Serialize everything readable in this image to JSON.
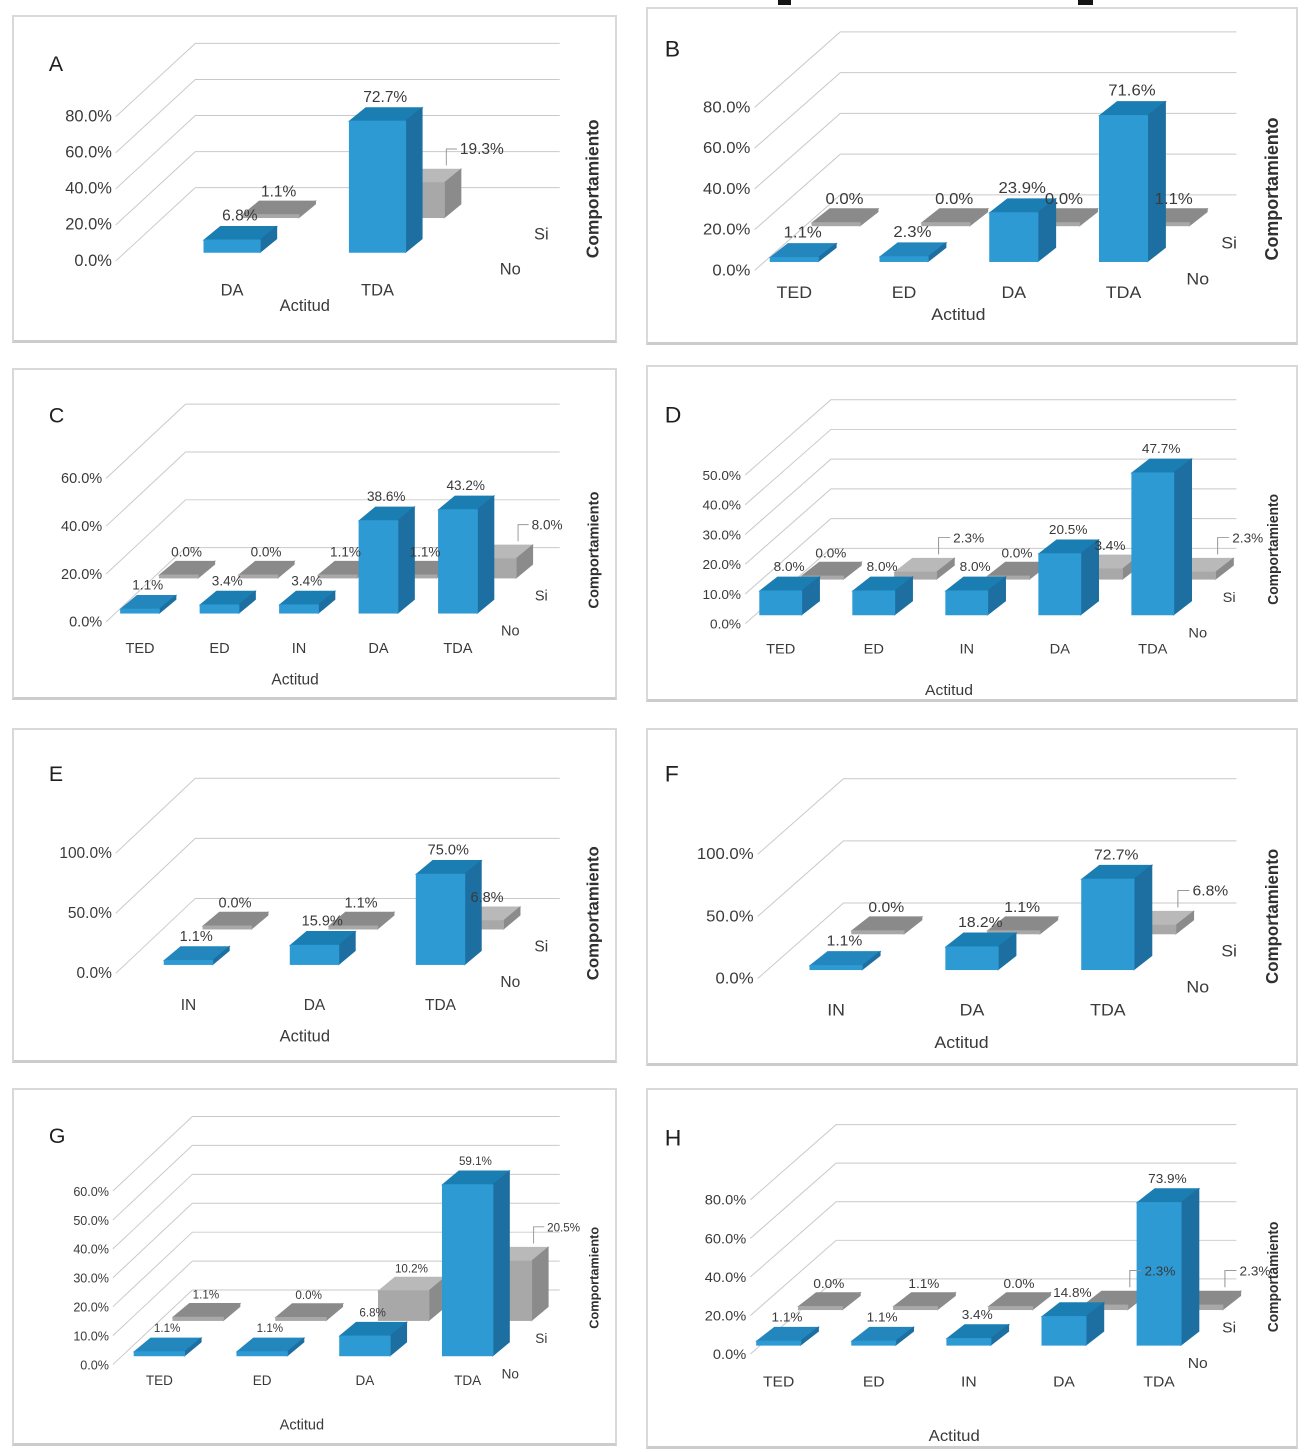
{
  "page": {
    "background": "#FFFFFF"
  },
  "colors": {
    "bar_blue_front": "#2E9AD4",
    "bar_blue_top": "#1B7EB2",
    "bar_blue_top_flat": "#2387BE",
    "bar_blue_side": "#1C6FA0",
    "bar_gray_front": "#A8A8A8",
    "bar_gray_top": "#B9B9B9",
    "bar_gray_top_flat": "#8A8A8A",
    "bar_gray_side": "#8B8B8B",
    "gridline": "#C9C9C9",
    "leader_line": "#999999",
    "text": "#3A3A3A",
    "panel_letter": "#1F1F1F",
    "panel_border": "#D9D9D9"
  },
  "chart_data": [
    {
      "panel_label": "A",
      "type": "bar",
      "projection": "3d",
      "x_axis_title": "Actitud",
      "depth_axis_title": "Comportamiento",
      "depth_labels": [
        "Si",
        "No"
      ],
      "categories": [
        "DA",
        "TDA"
      ],
      "y_ticks": [
        "0.0%",
        "20.0%",
        "40.0%",
        "60.0%",
        "80.0%"
      ],
      "ylim": [
        0,
        80
      ],
      "series": [
        {
          "name": "No",
          "row": "front-blue",
          "values": [
            6.8,
            72.7
          ],
          "labels": [
            "6.8%",
            "72.7%"
          ],
          "label_leader_indices": []
        },
        {
          "name": "Si",
          "row": "back-gray",
          "values": [
            1.1,
            19.3
          ],
          "labels": [
            "1.1%",
            "19.3%"
          ],
          "label_leader_indices": [
            1
          ]
        }
      ]
    },
    {
      "panel_label": "B",
      "type": "bar",
      "projection": "3d",
      "x_axis_title": "Actitud",
      "depth_axis_title": "Comportamiento",
      "depth_labels": [
        "Si",
        "No"
      ],
      "categories": [
        "TED",
        "ED",
        "DA",
        "TDA"
      ],
      "y_ticks": [
        "0.0%",
        "20.0%",
        "40.0%",
        "60.0%",
        "80.0%"
      ],
      "ylim": [
        0,
        80
      ],
      "series": [
        {
          "name": "No",
          "row": "front-blue",
          "values": [
            1.1,
            2.3,
            23.9,
            71.6
          ],
          "labels": [
            "1.1%",
            "2.3%",
            "23.9%",
            "71.6%"
          ],
          "label_leader_indices": []
        },
        {
          "name": "Si",
          "row": "back-gray",
          "values": [
            0.0,
            0.0,
            0.0,
            1.1
          ],
          "labels": [
            "0.0%",
            "0.0%",
            "0.0%",
            "1.1%"
          ],
          "label_leader_indices": []
        }
      ]
    },
    {
      "panel_label": "C",
      "type": "bar",
      "projection": "3d",
      "x_axis_title": "Actitud",
      "depth_axis_title": "Comportamiento",
      "depth_labels": [
        "Si",
        "No"
      ],
      "categories": [
        "TED",
        "ED",
        "IN",
        "DA",
        "TDA"
      ],
      "y_ticks": [
        "0.0%",
        "20.0%",
        "40.0%",
        "60.0%"
      ],
      "ylim": [
        0,
        60
      ],
      "series": [
        {
          "name": "No",
          "row": "front-blue",
          "values": [
            1.1,
            3.4,
            3.4,
            38.6,
            43.2
          ],
          "labels": [
            "1.1%",
            "3.4%",
            "3.4%",
            "38.6%",
            "43.2%"
          ],
          "label_leader_indices": []
        },
        {
          "name": "Si",
          "row": "back-gray",
          "values": [
            0.0,
            0.0,
            1.1,
            1.1,
            8.0
          ],
          "labels": [
            "0.0%",
            "0.0%",
            "1.1%",
            "1.1%",
            "8.0%"
          ],
          "label_leader_indices": [
            4
          ]
        }
      ]
    },
    {
      "panel_label": "D",
      "type": "bar",
      "projection": "3d",
      "x_axis_title": "Actitud",
      "depth_axis_title": "Comportamiento",
      "depth_labels": [
        "Si",
        "No"
      ],
      "categories": [
        "TED",
        "ED",
        "IN",
        "DA",
        "TDA"
      ],
      "y_ticks": [
        "0.0%",
        "10.0%",
        "20.0%",
        "30.0%",
        "40.0%",
        "50.0%"
      ],
      "ylim": [
        0,
        50
      ],
      "series": [
        {
          "name": "No",
          "row": "front-blue",
          "values": [
            8.0,
            8.0,
            8.0,
            20.5,
            47.7
          ],
          "labels": [
            "8.0%",
            "8.0%",
            "8.0%",
            "20.5%",
            "47.7%"
          ],
          "label_leader_indices": []
        },
        {
          "name": "Si",
          "row": "back-gray",
          "values": [
            0.0,
            2.3,
            0.0,
            3.4,
            2.3
          ],
          "labels": [
            "0.0%",
            "2.3%",
            "0.0%",
            "3.4%",
            "2.3%"
          ],
          "label_leader_indices": [
            1,
            4
          ]
        }
      ]
    },
    {
      "panel_label": "E",
      "type": "bar",
      "projection": "3d",
      "x_axis_title": "Actitud",
      "depth_axis_title": "Comportamiento",
      "depth_labels": [
        "Si",
        "No"
      ],
      "categories": [
        "IN",
        "DA",
        "TDA"
      ],
      "y_ticks": [
        "0.0%",
        "50.0%",
        "100.0%"
      ],
      "ylim": [
        0,
        100
      ],
      "series": [
        {
          "name": "No",
          "row": "front-blue",
          "values": [
            1.1,
            15.9,
            75.0
          ],
          "labels": [
            "1.1%",
            "15.9%",
            "75.0%"
          ],
          "label_leader_indices": []
        },
        {
          "name": "Si",
          "row": "back-gray",
          "values": [
            0.0,
            1.1,
            6.8
          ],
          "labels": [
            "0.0%",
            "1.1%",
            "6.8%"
          ],
          "label_leader_indices": []
        }
      ]
    },
    {
      "panel_label": "F",
      "type": "bar",
      "projection": "3d",
      "x_axis_title": "Actitud",
      "depth_axis_title": "Comportamiento",
      "depth_labels": [
        "Si",
        "No"
      ],
      "categories": [
        "IN",
        "DA",
        "TDA"
      ],
      "y_ticks": [
        "0.0%",
        "50.0%",
        "100.0%"
      ],
      "ylim": [
        0,
        100
      ],
      "series": [
        {
          "name": "No",
          "row": "front-blue",
          "values": [
            1.1,
            18.2,
            72.7
          ],
          "labels": [
            "1.1%",
            "18.2%",
            "72.7%"
          ],
          "label_leader_indices": []
        },
        {
          "name": "Si",
          "row": "back-gray",
          "values": [
            0.0,
            1.1,
            6.8
          ],
          "labels": [
            "0.0%",
            "1.1%",
            "6.8%"
          ],
          "label_leader_indices": [
            2
          ]
        }
      ]
    },
    {
      "panel_label": "G",
      "type": "bar",
      "projection": "3d",
      "x_axis_title": "Actitud",
      "depth_axis_title": "Comportamiento",
      "depth_labels": [
        "Si",
        "No"
      ],
      "categories": [
        "TED",
        "ED",
        "DA",
        "TDA"
      ],
      "y_ticks": [
        "0.0%",
        "10.0%",
        "20.0%",
        "30.0%",
        "40.0%",
        "50.0%",
        "60.0%"
      ],
      "ylim": [
        0,
        60
      ],
      "series": [
        {
          "name": "No",
          "row": "front-blue",
          "values": [
            1.1,
            1.1,
            6.8,
            59.1
          ],
          "labels": [
            "1.1%",
            "1.1%",
            "6.8%",
            "59.1%"
          ],
          "label_leader_indices": []
        },
        {
          "name": "Si",
          "row": "back-gray",
          "values": [
            1.1,
            0.0,
            10.2,
            20.5
          ],
          "labels": [
            "1.1%",
            "0.0%",
            "10.2%",
            "20.5%"
          ],
          "label_leader_indices": [
            3
          ]
        }
      ]
    },
    {
      "panel_label": "H",
      "type": "bar",
      "projection": "3d",
      "x_axis_title": "Actitud",
      "depth_axis_title": "Comportamiento",
      "depth_labels": [
        "Si",
        "No"
      ],
      "categories": [
        "TED",
        "ED",
        "IN",
        "DA",
        "TDA"
      ],
      "y_ticks": [
        "0.0%",
        "20.0%",
        "40.0%",
        "60.0%",
        "80.0%"
      ],
      "ylim": [
        0,
        80
      ],
      "series": [
        {
          "name": "No",
          "row": "front-blue",
          "values": [
            1.1,
            1.1,
            3.4,
            14.8,
            73.9
          ],
          "labels": [
            "1.1%",
            "1.1%",
            "3.4%",
            "14.8%",
            "73.9%"
          ],
          "label_leader_indices": []
        },
        {
          "name": "Si",
          "row": "back-gray",
          "values": [
            0.0,
            1.1,
            0.0,
            2.3,
            2.3
          ],
          "labels": [
            "0.0%",
            "1.1%",
            "0.0%",
            "2.3%",
            "2.3%"
          ],
          "label_leader_indices": [
            3,
            4
          ]
        }
      ]
    }
  ]
}
